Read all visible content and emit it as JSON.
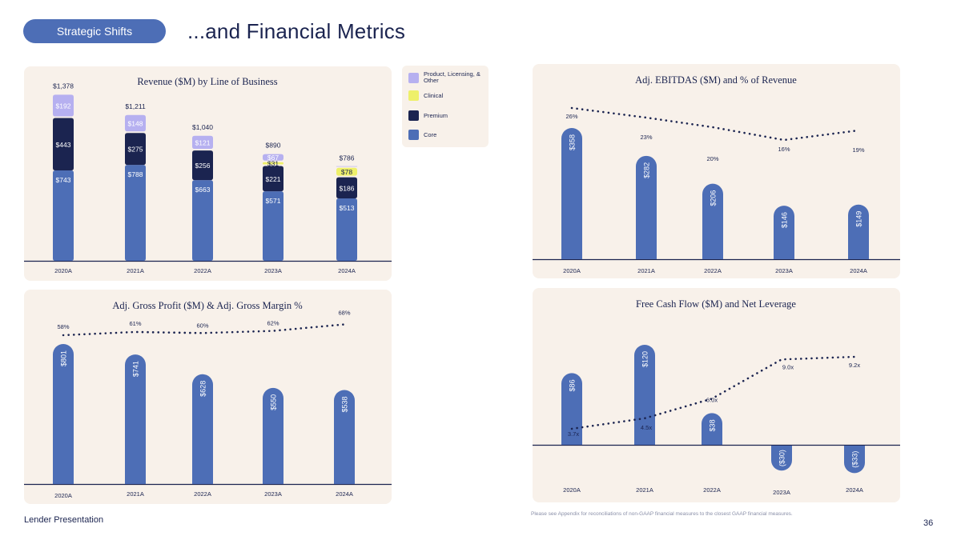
{
  "header": {
    "section_pill": "Strategic Shifts",
    "title": "...and Financial Metrics"
  },
  "footer": {
    "left": "Lender Presentation",
    "note": "Please see Appendix for reconciliations of non-GAAP financial measures to the closest GAAP financial measures.",
    "page": "36"
  },
  "colors": {
    "core": "#4d6eb6",
    "premium": "#1b2450",
    "clinical": "#eef06a",
    "other": "#b6b0f0",
    "panel": "#f8f1ea",
    "text": "#1b2450"
  },
  "legend": [
    {
      "label": "Product, Licensing, & Other",
      "color": "#b6b0f0",
      "icon": "legend-swatch"
    },
    {
      "label": "Clinical",
      "color": "#eef06a",
      "icon": "legend-swatch"
    },
    {
      "label": "Premium",
      "color": "#1b2450",
      "icon": "legend-swatch"
    },
    {
      "label": "Core",
      "color": "#4d6eb6",
      "icon": "legend-swatch"
    }
  ],
  "chart_data": [
    {
      "id": "revenue",
      "type": "bar",
      "stacked": true,
      "title": "Revenue ($M) by Line of Business",
      "categories": [
        "2020A",
        "2021A",
        "2022A",
        "2023A",
        "2024A"
      ],
      "ylim": [
        0,
        1400
      ],
      "series": [
        {
          "name": "Core",
          "values": [
            743,
            788,
            663,
            571,
            513
          ],
          "labels": [
            "$743",
            "$788",
            "$663",
            "$571",
            "$513"
          ]
        },
        {
          "name": "Premium",
          "values": [
            443,
            275,
            256,
            221,
            186
          ],
          "labels": [
            "$443",
            "$275",
            "$256",
            "$221",
            "$186"
          ]
        },
        {
          "name": "Clinical",
          "values": [
            0,
            0,
            0,
            31,
            78
          ],
          "labels": [
            "",
            "",
            "",
            "$31",
            "$78"
          ]
        },
        {
          "name": "Product, Licensing, & Other",
          "values": [
            192,
            148,
            121,
            67,
            9
          ],
          "labels": [
            "$192",
            "$148",
            "$121",
            "$67",
            ""
          ]
        }
      ],
      "totals": [
        1378,
        1211,
        1040,
        890,
        786
      ],
      "total_labels": [
        "$1,378",
        "$1,211",
        "$1,040",
        "$890",
        "$786"
      ]
    },
    {
      "id": "ebitdas",
      "type": "bar",
      "title": "Adj. EBITDAS ($M) and % of Revenue",
      "categories": [
        "2020A",
        "2021A",
        "2022A",
        "2023A",
        "2024A"
      ],
      "values": [
        358,
        282,
        206,
        146,
        149
      ],
      "value_labels": [
        "$358",
        "$282",
        "$206",
        "$146",
        "$149"
      ],
      "ylim": [
        0,
        420
      ],
      "line": {
        "name": "% of Revenue",
        "values": [
          26,
          23,
          20,
          16,
          19
        ],
        "labels": [
          "26%",
          "23%",
          "20%",
          "16%",
          "19%"
        ],
        "ylim": [
          0,
          30
        ]
      }
    },
    {
      "id": "gross",
      "type": "bar",
      "title": "Adj. Gross Profit ($M) & Adj. Gross Margin %",
      "categories": [
        "2020A",
        "2021A",
        "2022A",
        "2023A",
        "2024A"
      ],
      "values": [
        801,
        741,
        628,
        550,
        538
      ],
      "value_labels": [
        "$801",
        "$741",
        "$628",
        "$550",
        "$538"
      ],
      "ylim": [
        0,
        900
      ],
      "line": {
        "name": "Adj. Gross Margin %",
        "values": [
          58,
          61,
          60,
          62,
          68
        ],
        "labels": [
          "58%",
          "61%",
          "60%",
          "62%",
          "68%"
        ],
        "ylim": [
          0,
          70
        ]
      }
    },
    {
      "id": "fcf",
      "type": "bar",
      "title": "Free Cash Flow ($M) and Net Leverage",
      "categories": [
        "2020A",
        "2021A",
        "2022A",
        "2023A",
        "2024A"
      ],
      "values": [
        86,
        120,
        38,
        -30,
        -33
      ],
      "value_labels": [
        "$86",
        "$120",
        "$38",
        "($30)",
        "($33)"
      ],
      "ylim": [
        -40,
        130
      ],
      "line": {
        "name": "Net Leverage",
        "values": [
          3.7,
          4.5,
          6.0,
          9.0,
          9.2
        ],
        "labels": [
          "3.7x",
          "4.5x",
          "6.0x",
          "9.0x",
          "9.2x"
        ],
        "ylim": [
          0,
          10
        ]
      }
    }
  ]
}
